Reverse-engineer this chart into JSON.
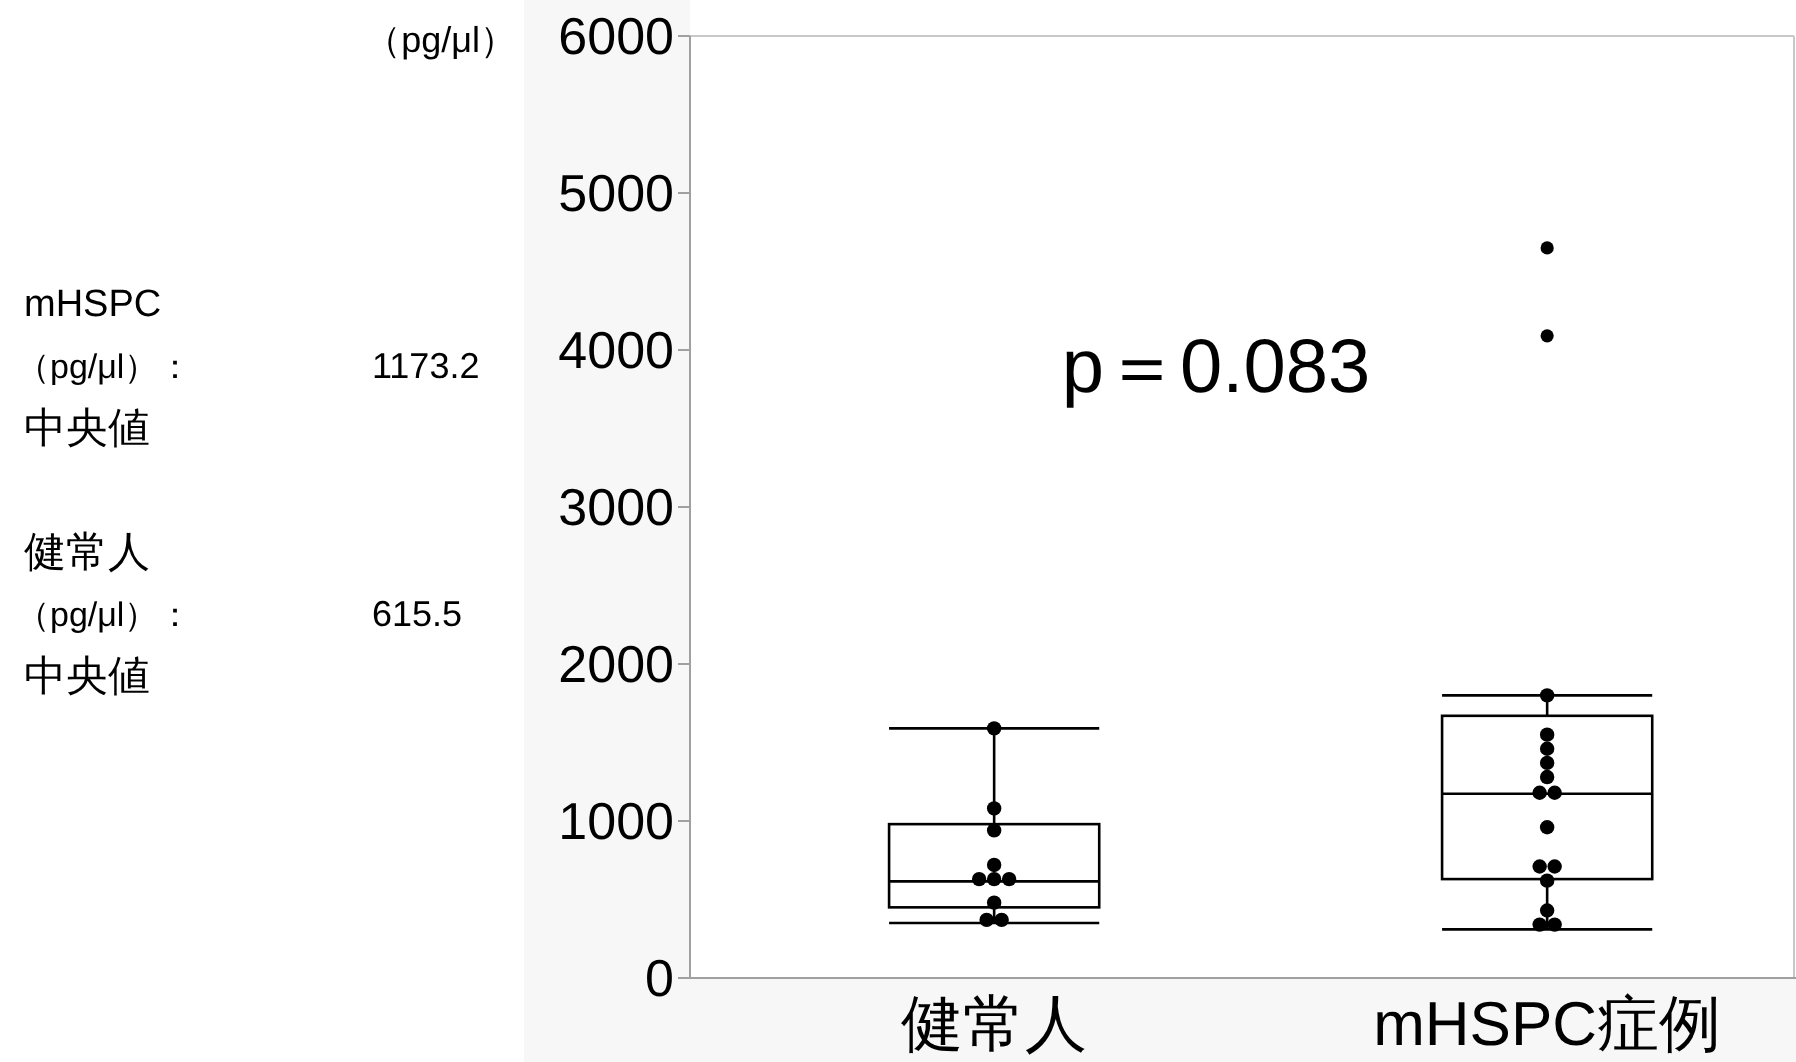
{
  "chart_data": {
    "type": "box",
    "ylabel": "（pg/μl）",
    "categories": [
      "健常人",
      "mHSPC症例"
    ],
    "ylim": [
      0,
      6000
    ],
    "yticks": [
      0,
      1000,
      2000,
      3000,
      4000,
      5000,
      6000
    ],
    "grid": false,
    "series": [
      {
        "color": "#000000",
        "boxes": [
          {
            "low": 350,
            "q1": 450,
            "median": 615.5,
            "q3": 980,
            "high": 1590
          },
          {
            "low": 310,
            "q1": 630,
            "median": 1173.2,
            "q3": 1670,
            "high": 1800,
            "outliers": [
              4650,
              4090
            ]
          }
        ]
      },
      {
        "type": "scatter",
        "color": "#000000",
        "x": [
          "健常人",
          "健常人",
          "健常人",
          "健常人",
          "健常人",
          "健常人",
          "健常人",
          "健常人",
          "健常人",
          "健常人",
          "mHSPC症例",
          "mHSPC症例",
          "mHSPC症例",
          "mHSPC症例",
          "mHSPC症例",
          "mHSPC症例",
          "mHSPC症例",
          "mHSPC症例",
          "mHSPC症例",
          "mHSPC症例",
          "mHSPC症例",
          "mHSPC症例",
          "mHSPC症例",
          "mHSPC症例"
        ],
        "values": [
          1590,
          1080,
          940,
          720,
          630,
          630,
          630,
          480,
          370,
          370,
          1800,
          1550,
          1460,
          1370,
          1280,
          1180,
          1180,
          960,
          710,
          710,
          620,
          430,
          340,
          340
        ]
      }
    ],
    "annotations": [
      "p＝0.083",
      "mHSPC",
      "（pg/μl）：",
      "中央値",
      "1173.2",
      "健常人",
      "（pg/μl）：",
      "中央値",
      "615.5"
    ]
  }
}
